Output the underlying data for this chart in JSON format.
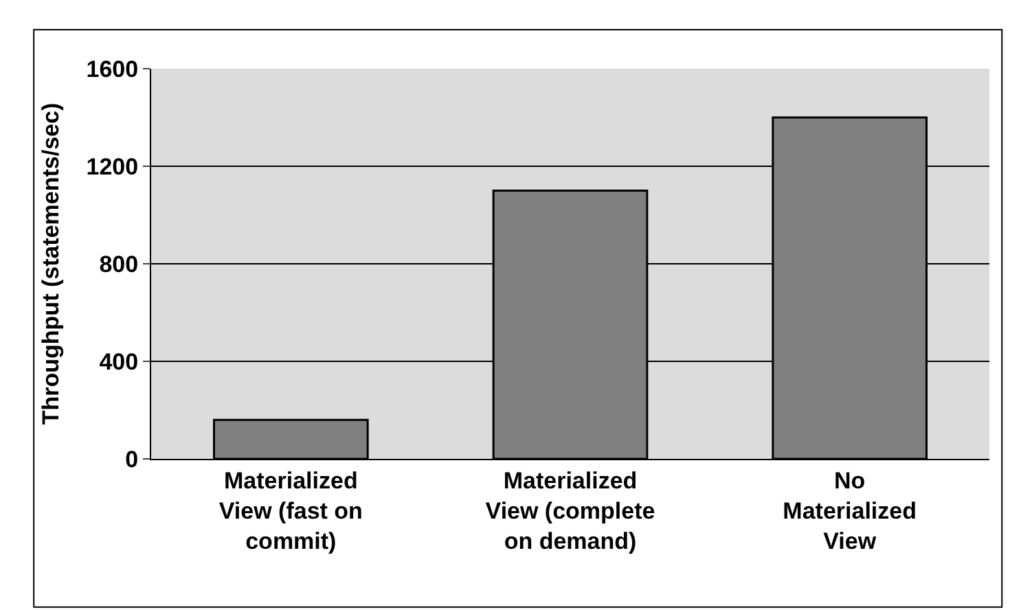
{
  "chart_data": {
    "type": "bar",
    "ylabel": "Throughput (statements/sec)",
    "categories": [
      "Materialized View (fast on commit)",
      "Materialized View (complete on demand)",
      "No Materialized View"
    ],
    "values": [
      160,
      1100,
      1400
    ],
    "color": "#808080",
    "ylim": [
      0,
      1600
    ],
    "yticks": [
      0,
      400,
      800,
      1200,
      1600
    ],
    "grid": "y"
  }
}
